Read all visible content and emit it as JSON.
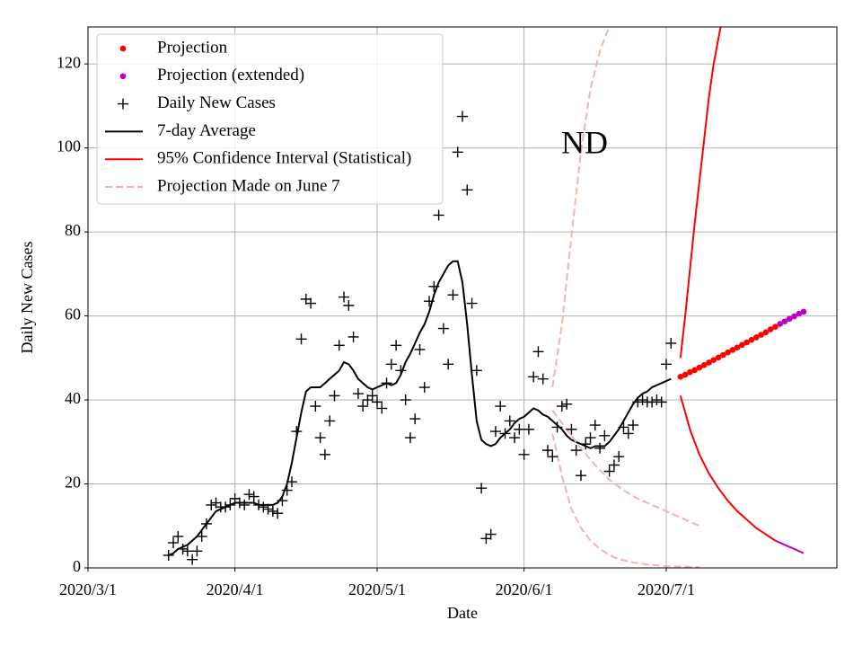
{
  "chart_data": {
    "type": "line",
    "annotations": [
      "ND"
    ],
    "xlabel": "Date",
    "ylabel": "Daily New Cases",
    "xlim": [
      "2020-03-01",
      "2020-08-06"
    ],
    "ylim": [
      0,
      128.8
    ],
    "xticks": [
      {
        "value": "2020-03-01",
        "label": "2020/3/1"
      },
      {
        "value": "2020-04-01",
        "label": "2020/4/1"
      },
      {
        "value": "2020-05-01",
        "label": "2020/5/1"
      },
      {
        "value": "2020-06-01",
        "label": "2020/6/1"
      },
      {
        "value": "2020-07-01",
        "label": "2020/7/1"
      }
    ],
    "yticks": [
      0,
      20,
      40,
      60,
      80,
      100,
      120
    ],
    "grid": true,
    "legend": "upper left",
    "x": [
      "2020-03-18",
      "2020-03-19",
      "2020-03-20",
      "2020-03-21",
      "2020-03-22",
      "2020-03-23",
      "2020-03-24",
      "2020-03-25",
      "2020-03-26",
      "2020-03-27",
      "2020-03-28",
      "2020-03-29",
      "2020-03-30",
      "2020-03-31",
      "2020-04-01",
      "2020-04-02",
      "2020-04-03",
      "2020-04-04",
      "2020-04-05",
      "2020-04-06",
      "2020-04-07",
      "2020-04-08",
      "2020-04-09",
      "2020-04-10",
      "2020-04-11",
      "2020-04-12",
      "2020-04-13",
      "2020-04-14",
      "2020-04-15",
      "2020-04-16",
      "2020-04-17",
      "2020-04-18",
      "2020-04-19",
      "2020-04-20",
      "2020-04-21",
      "2020-04-22",
      "2020-04-23",
      "2020-04-24",
      "2020-04-25",
      "2020-04-26",
      "2020-04-27",
      "2020-04-28",
      "2020-04-29",
      "2020-04-30",
      "2020-05-01",
      "2020-05-02",
      "2020-05-03",
      "2020-05-04",
      "2020-05-05",
      "2020-05-06",
      "2020-05-07",
      "2020-05-08",
      "2020-05-09",
      "2020-05-10",
      "2020-05-11",
      "2020-05-12",
      "2020-05-13",
      "2020-05-14",
      "2020-05-15",
      "2020-05-16",
      "2020-05-17",
      "2020-05-18",
      "2020-05-19",
      "2020-05-20",
      "2020-05-21",
      "2020-05-22",
      "2020-05-23",
      "2020-05-24",
      "2020-05-25",
      "2020-05-26",
      "2020-05-27",
      "2020-05-28",
      "2020-05-29",
      "2020-05-30",
      "2020-05-31",
      "2020-06-01",
      "2020-06-02",
      "2020-06-03",
      "2020-06-04",
      "2020-06-05",
      "2020-06-06",
      "2020-06-07",
      "2020-06-08",
      "2020-06-09",
      "2020-06-10",
      "2020-06-11",
      "2020-06-12",
      "2020-06-13",
      "2020-06-14",
      "2020-06-15",
      "2020-06-16",
      "2020-06-17",
      "2020-06-18",
      "2020-06-19",
      "2020-06-20",
      "2020-06-21",
      "2020-06-22",
      "2020-06-23",
      "2020-06-24",
      "2020-06-25",
      "2020-06-26",
      "2020-06-27",
      "2020-06-28",
      "2020-06-29",
      "2020-06-30",
      "2020-07-01",
      "2020-07-02"
    ],
    "series": [
      {
        "name": "Projection",
        "color": "#ff0000",
        "marker": "o",
        "x": [
          "2020-07-04",
          "2020-07-05",
          "2020-07-06",
          "2020-07-07",
          "2020-07-08",
          "2020-07-09",
          "2020-07-10",
          "2020-07-11",
          "2020-07-12",
          "2020-07-13",
          "2020-07-14",
          "2020-07-15",
          "2020-07-16",
          "2020-07-17",
          "2020-07-18",
          "2020-07-19",
          "2020-07-20",
          "2020-07-21",
          "2020-07-22",
          "2020-07-23",
          "2020-07-24"
        ],
        "values": [
          45.5,
          46,
          46.6,
          47.1,
          47.7,
          48.3,
          48.9,
          49.5,
          50.1,
          50.7,
          51.3,
          51.9,
          52.5,
          53.1,
          53.7,
          54.3,
          54.9,
          55.5,
          56.1,
          56.8,
          57.4
        ]
      },
      {
        "name": "Projection (extended)",
        "color": "#bf00bf",
        "marker": "o",
        "x": [
          "2020-07-25",
          "2020-07-26",
          "2020-07-27",
          "2020-07-28",
          "2020-07-29",
          "2020-07-30"
        ],
        "values": [
          58.1,
          58.7,
          59.3,
          59.9,
          60.5,
          61
        ],
        "lines": [
          {
            "x": [
              "2020-07-24",
              "2020-07-26",
              "2020-07-28",
              "2020-07-30"
            ],
            "values": [
              6.5,
              5.5,
              4.5,
              3.5
            ]
          }
        ]
      },
      {
        "name": "Daily New Cases",
        "color": "#000000",
        "marker": "+",
        "values": [
          3,
          6,
          7.5,
          4.5,
          4,
          2,
          4,
          7.5,
          10.5,
          15,
          15.5,
          14.5,
          14.5,
          15,
          16.5,
          15.5,
          15,
          17.5,
          17,
          15,
          14.5,
          14,
          13.5,
          13,
          16,
          18.5,
          20.5,
          32.5,
          54.5,
          64,
          63,
          38.5,
          31,
          27,
          35,
          41,
          53,
          64.5,
          62.5,
          55,
          41.5,
          38.5,
          40,
          41,
          39.5,
          38,
          44,
          48.5,
          53,
          47,
          40,
          31,
          35.5,
          52,
          43,
          63.5,
          67,
          84,
          57,
          48.5,
          65,
          99,
          107.5,
          90,
          63,
          47,
          19,
          7,
          8,
          32.5,
          38.5,
          32,
          35,
          31,
          33,
          27,
          33,
          45.5,
          51.5,
          45,
          28,
          26.5,
          33.5,
          38.5,
          39,
          33,
          28,
          22,
          29.5,
          31,
          34,
          28.5,
          31.5,
          23,
          24.5,
          26.5,
          33.5,
          32,
          34,
          39.5,
          40,
          39.5,
          39.5,
          40,
          39.5,
          48.5,
          53.5
        ]
      },
      {
        "name": "7-day Average",
        "color": "#000000",
        "linestyle": "solid",
        "values": [
          3,
          3.5,
          4.5,
          5,
          5.5,
          6.5,
          7.5,
          9,
          10.5,
          12,
          13.5,
          14,
          14.5,
          15,
          15.5,
          15.5,
          15.5,
          15.5,
          15.5,
          15,
          15,
          15,
          15,
          15.5,
          17,
          20,
          25,
          31,
          37,
          42,
          43,
          43,
          43,
          44,
          45,
          46,
          47,
          49,
          48.5,
          47,
          45,
          44,
          43,
          42.5,
          43,
          43.5,
          44,
          43.5,
          44,
          46,
          49,
          51,
          53.5,
          56,
          58,
          61,
          65,
          68,
          70,
          72,
          73,
          73,
          68,
          58,
          46,
          35,
          30.5,
          29.5,
          29,
          29.5,
          31,
          32,
          33,
          34.5,
          35.5,
          36,
          37,
          38,
          37.5,
          36.5,
          36,
          35,
          34,
          33,
          31.5,
          30.5,
          30,
          29.5,
          29,
          28.5,
          29,
          29,
          29,
          30,
          31.5,
          33,
          35,
          37,
          39,
          40.5,
          41.5,
          42,
          43,
          43.5,
          44,
          44.5,
          45
        ]
      },
      {
        "name": "95% Confidence Interval (Statistical)",
        "color": "#ff0000",
        "linestyle": "solid",
        "lines": [
          {
            "x": [
              "2020-07-04",
              "2020-07-05",
              "2020-07-06",
              "2020-07-07",
              "2020-07-08",
              "2020-07-09",
              "2020-07-10",
              "2020-07-11",
              "2020-07-12",
              "2020-07-13"
            ],
            "values": [
              50,
              60,
              71,
              82,
              92,
              102,
              112,
              120,
              126,
              132
            ]
          },
          {
            "x": [
              "2020-07-04",
              "2020-07-06",
              "2020-07-08",
              "2020-07-10",
              "2020-07-12",
              "2020-07-14",
              "2020-07-16",
              "2020-07-18",
              "2020-07-20",
              "2020-07-22",
              "2020-07-24"
            ],
            "values": [
              41,
              33,
              27,
              22.5,
              19,
              16,
              13.5,
              11.5,
              9.5,
              8,
              6.5
            ]
          }
        ]
      },
      {
        "name": "Projection Made on June 7",
        "color": "#f8b0b0",
        "linestyle": "dashed",
        "lines": [
          {
            "x": [
              "2020-06-07",
              "2020-06-09",
              "2020-06-11",
              "2020-06-13",
              "2020-06-15",
              "2020-06-17",
              "2020-06-19",
              "2020-06-20"
            ],
            "values": [
              43,
              58,
              79,
              99,
              114,
              123,
              129,
              132
            ]
          },
          {
            "x": [
              "2020-06-07",
              "2020-06-10",
              "2020-06-13",
              "2020-06-16",
              "2020-06-19",
              "2020-06-22",
              "2020-06-25",
              "2020-06-28",
              "2020-07-01",
              "2020-07-04",
              "2020-07-08"
            ],
            "values": [
              37.5,
              33,
              28.5,
              24.5,
              21,
              18.5,
              16.5,
              15,
              13.5,
              12,
              10
            ]
          },
          {
            "x": [
              "2020-06-07",
              "2020-06-09",
              "2020-06-11",
              "2020-06-13",
              "2020-06-15",
              "2020-06-17",
              "2020-06-20",
              "2020-06-23",
              "2020-06-27",
              "2020-07-01",
              "2020-07-08"
            ],
            "values": [
              32,
              22,
              14,
              9.5,
              6.5,
              4.5,
              2.5,
              1.5,
              0.8,
              0.4,
              0.2
            ]
          }
        ]
      }
    ]
  }
}
